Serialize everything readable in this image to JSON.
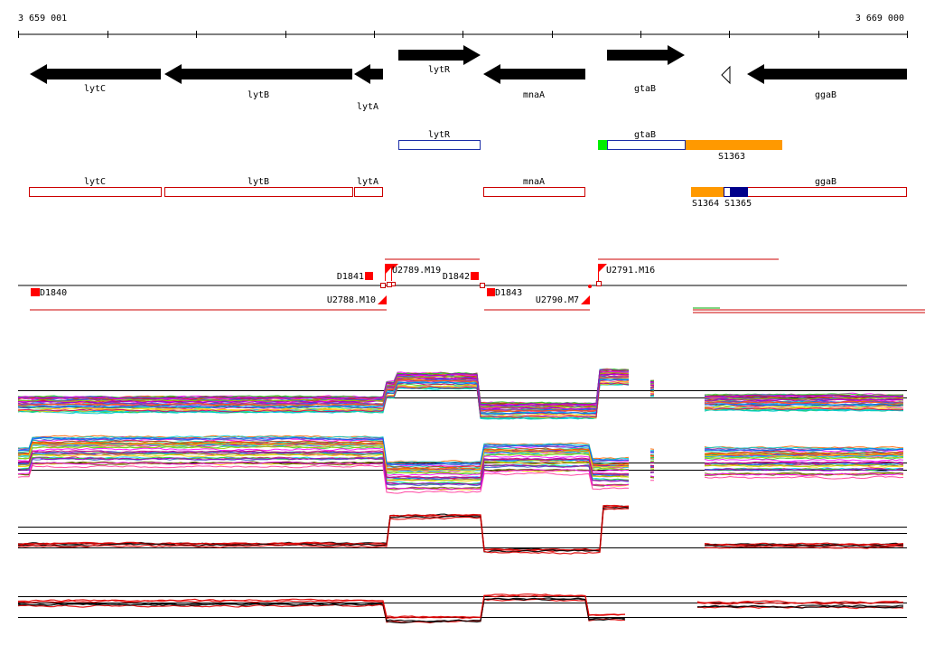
{
  "axis": {
    "start_label": "3 659 001",
    "end_label": "3 669 000"
  },
  "genes_track": [
    {
      "name": "lytC",
      "strand": "minus"
    },
    {
      "name": "lytB",
      "strand": "minus"
    },
    {
      "name": "lytA",
      "strand": "minus"
    },
    {
      "name": "lytR",
      "strand": "plus"
    },
    {
      "name": "mnaA",
      "strand": "minus"
    },
    {
      "name": "gtaB",
      "strand": "plus"
    },
    {
      "name": "ggaB",
      "strand": "minus"
    }
  ],
  "plus_features": [
    {
      "name": "lytR",
      "color": "#1c2fa8"
    },
    {
      "name": "gtaB",
      "color": "#1c2fa8"
    },
    {
      "name": "S1363",
      "color": "#ff9900"
    }
  ],
  "minus_features": [
    {
      "name": "lytC",
      "color": "#cc0000"
    },
    {
      "name": "lytB",
      "color": "#cc0000"
    },
    {
      "name": "lytA",
      "color": "#cc0000"
    },
    {
      "name": "mnaA",
      "color": "#cc0000"
    },
    {
      "name": "ggaB",
      "color": "#cc0000"
    },
    {
      "name": "S1364",
      "color": "#ff9900"
    },
    {
      "name": "S1365",
      "color": "#00008b"
    }
  ],
  "regulatory_sites": [
    {
      "name": "D1840"
    },
    {
      "name": "D1841"
    },
    {
      "name": "D1842"
    },
    {
      "name": "D1843"
    },
    {
      "name": "U2788.M10"
    },
    {
      "name": "U2789.M19"
    },
    {
      "name": "U2790.M7"
    },
    {
      "name": "U2791.M16"
    }
  ],
  "expression_panels": [
    {
      "id": "plus-strand-conditions",
      "style": "multicolor"
    },
    {
      "id": "minus-strand-conditions",
      "style": "multicolor"
    },
    {
      "id": "plus-strand-summary",
      "style": "black-red"
    },
    {
      "id": "minus-strand-summary",
      "style": "black-red"
    }
  ],
  "colors": {
    "gene_arrow": "#000000",
    "minus_feature": "#cc0000",
    "plus_feature": "#1c2fa8",
    "site_marker": "#ff0000",
    "accent_green": "#00ee00",
    "accent_orange": "#ff9900"
  }
}
